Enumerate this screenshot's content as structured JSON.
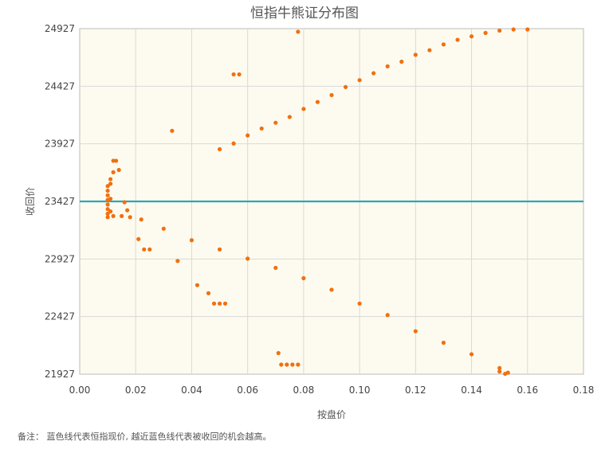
{
  "chart_data": {
    "type": "scatter",
    "title": "恒指牛熊证分布图",
    "xlabel": "按盘价",
    "ylabel": "收回价",
    "xlim": [
      0,
      0.18
    ],
    "ylim": [
      21927,
      24927
    ],
    "x_ticks": [
      "0.00",
      "0.02",
      "0.04",
      "0.06",
      "0.08",
      "0.10",
      "0.12",
      "0.14",
      "0.16",
      "0.18"
    ],
    "y_ticks": [
      "21927",
      "22427",
      "22927",
      "23427",
      "23927",
      "24427",
      "24927"
    ],
    "grid": true,
    "reference_line": {
      "y": 23427,
      "color": "#2aa8b8"
    },
    "point_color": "#f07010",
    "plot_background": "#fdfbef",
    "series": [
      {
        "values": [
          [
            0.01,
            23560
          ],
          [
            0.01,
            23520
          ],
          [
            0.01,
            23480
          ],
          [
            0.01,
            23440
          ],
          [
            0.01,
            23400
          ],
          [
            0.01,
            23360
          ],
          [
            0.01,
            23320
          ],
          [
            0.01,
            23290
          ],
          [
            0.011,
            23620
          ],
          [
            0.011,
            23580
          ],
          [
            0.011,
            23450
          ],
          [
            0.011,
            23340
          ],
          [
            0.012,
            23680
          ],
          [
            0.012,
            23300
          ],
          [
            0.012,
            23780
          ],
          [
            0.013,
            23780
          ],
          [
            0.014,
            23700
          ],
          [
            0.015,
            23300
          ],
          [
            0.016,
            23420
          ],
          [
            0.017,
            23350
          ],
          [
            0.018,
            23290
          ],
          [
            0.021,
            23100
          ],
          [
            0.023,
            23010
          ],
          [
            0.025,
            23010
          ],
          [
            0.033,
            24040
          ],
          [
            0.035,
            22910
          ],
          [
            0.042,
            22700
          ],
          [
            0.046,
            22630
          ],
          [
            0.048,
            22540
          ],
          [
            0.05,
            22540
          ],
          [
            0.052,
            22540
          ],
          [
            0.055,
            24530
          ],
          [
            0.057,
            24530
          ],
          [
            0.071,
            22110
          ],
          [
            0.072,
            22010
          ],
          [
            0.074,
            22010
          ],
          [
            0.076,
            22010
          ],
          [
            0.078,
            22010
          ],
          [
            0.078,
            24900
          ],
          [
            0.15,
            21950
          ],
          [
            0.152,
            21930
          ],
          [
            0.153,
            21940
          ]
        ]
      },
      {
        "values": [
          [
            0.05,
            23880
          ],
          [
            0.055,
            23930
          ],
          [
            0.06,
            24000
          ],
          [
            0.065,
            24060
          ],
          [
            0.07,
            24110
          ],
          [
            0.075,
            24160
          ],
          [
            0.08,
            24230
          ],
          [
            0.085,
            24290
          ],
          [
            0.09,
            24350
          ],
          [
            0.095,
            24420
          ],
          [
            0.1,
            24480
          ],
          [
            0.105,
            24540
          ],
          [
            0.11,
            24600
          ],
          [
            0.115,
            24640
          ],
          [
            0.12,
            24700
          ],
          [
            0.125,
            24740
          ],
          [
            0.13,
            24790
          ],
          [
            0.135,
            24830
          ],
          [
            0.14,
            24860
          ],
          [
            0.145,
            24890
          ],
          [
            0.15,
            24910
          ],
          [
            0.155,
            24920
          ],
          [
            0.16,
            24920
          ]
        ]
      },
      {
        "values": [
          [
            0.022,
            23270
          ],
          [
            0.03,
            23190
          ],
          [
            0.04,
            23090
          ],
          [
            0.05,
            23010
          ],
          [
            0.06,
            22930
          ],
          [
            0.07,
            22850
          ],
          [
            0.08,
            22760
          ],
          [
            0.09,
            22660
          ],
          [
            0.1,
            22540
          ],
          [
            0.11,
            22440
          ],
          [
            0.12,
            22300
          ],
          [
            0.13,
            22200
          ],
          [
            0.14,
            22100
          ],
          [
            0.15,
            21980
          ]
        ]
      }
    ]
  },
  "footer": {
    "note": "备注：  蓝色线代表恒指现价, 越近蓝色线代表被收回的机会越高。"
  }
}
